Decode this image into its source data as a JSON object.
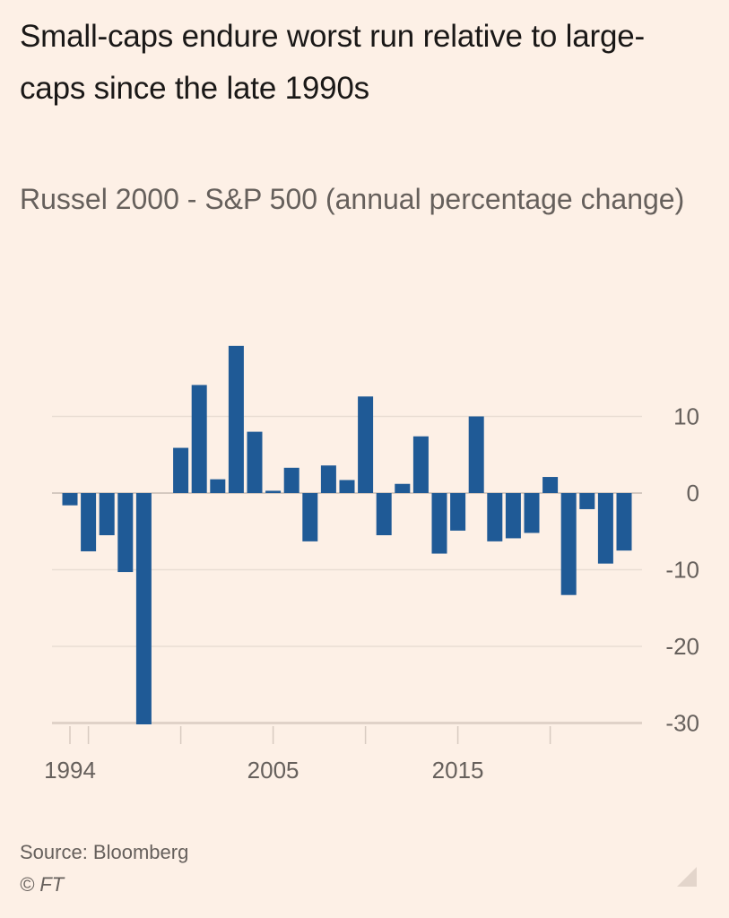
{
  "header": {
    "title": "Small-caps endure worst run relative to large-caps since the late 1990s",
    "subtitle": "Russel 2000 - S&P 500 (annual percentage change)"
  },
  "footer": {
    "source": "Source: Bloomberg",
    "copyright": "© FT"
  },
  "colors": {
    "background": "#fdf0e6",
    "bar": "#1f5a96",
    "gridline": "#e9ddd3",
    "text_muted": "#66605c"
  },
  "chart_data": {
    "type": "bar",
    "title": "Small-caps endure worst run relative to large-caps since the late 1990s",
    "subtitle": "Russel 2000 - S&P 500 (annual percentage change)",
    "xlabel": "",
    "ylabel": "",
    "categories": [
      1994,
      1995,
      1996,
      1997,
      1998,
      1999,
      2000,
      2001,
      2002,
      2003,
      2004,
      2005,
      2006,
      2007,
      2008,
      2009,
      2010,
      2011,
      2012,
      2013,
      2014,
      2015,
      2016,
      2017,
      2018,
      2019,
      2020,
      2021,
      2022,
      2023,
      2024
    ],
    "values": [
      -1.6,
      -7.6,
      -5.5,
      -10.3,
      -30.3,
      0,
      5.9,
      14.1,
      1.8,
      19.2,
      8.0,
      0.3,
      3.3,
      -6.3,
      3.6,
      1.7,
      12.6,
      -5.5,
      1.2,
      7.4,
      -7.9,
      -4.9,
      10.0,
      -6.3,
      -5.9,
      -5.2,
      2.1,
      -13.3,
      -2.1,
      -9.2,
      -7.5
    ],
    "ylim": [
      -30,
      20
    ],
    "yticks": [
      10,
      0,
      -10,
      -20,
      -30
    ],
    "ytick_labels": [
      "10",
      "0",
      "-10",
      "-20",
      "-30"
    ],
    "xtick_years": [
      1994,
      1995,
      2000,
      2005,
      2010,
      2015,
      2020
    ],
    "xtick_labels": [
      {
        "year": 1994,
        "label": "1994"
      },
      {
        "year": 2005,
        "label": "2005"
      },
      {
        "year": 2015,
        "label": "2015"
      }
    ],
    "y_axis_side": "right",
    "grid": true,
    "legend": "none"
  }
}
